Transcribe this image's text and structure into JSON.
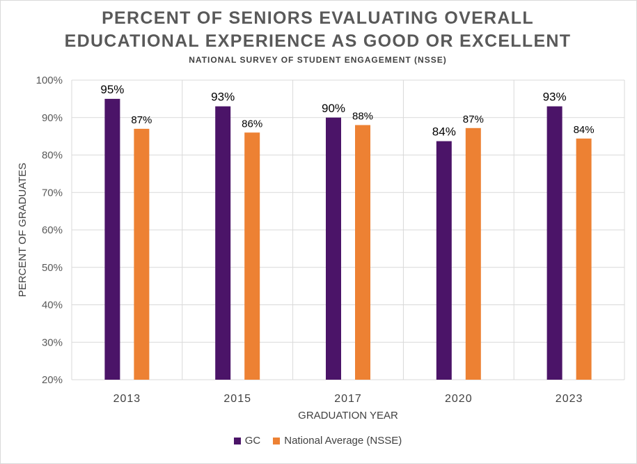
{
  "chart_data": {
    "type": "bar",
    "title_line1": "PERCENT OF SENIORS EVALUATING OVERALL",
    "title_line2": "EDUCATIONAL EXPERIENCE AS GOOD OR EXCELLENT",
    "subtitle": "NATIONAL SURVEY OF STUDENT ENGAGEMENT (NSSE)",
    "xlabel": "GRADUATION YEAR",
    "ylabel": "PERCENT OF GRADUATES",
    "categories": [
      "2013",
      "2015",
      "2017",
      "2020",
      "2023"
    ],
    "ylim": [
      20,
      100
    ],
    "yticks": [
      "20%",
      "30%",
      "40%",
      "50%",
      "60%",
      "70%",
      "80%",
      "90%",
      "100%"
    ],
    "series": [
      {
        "name": "GC",
        "color": "#4b1468",
        "values": [
          95,
          93,
          90,
          83.7,
          93
        ],
        "labels": [
          "95%",
          "93%",
          "90%",
          "84%",
          "93%"
        ]
      },
      {
        "name": "National Average (NSSE)",
        "color": "#ed8133",
        "values": [
          87,
          86,
          88,
          87.2,
          84.4
        ],
        "labels": [
          "87%",
          "86%",
          "88%",
          "87%",
          "84%"
        ]
      }
    ],
    "legend_position": "bottom"
  }
}
